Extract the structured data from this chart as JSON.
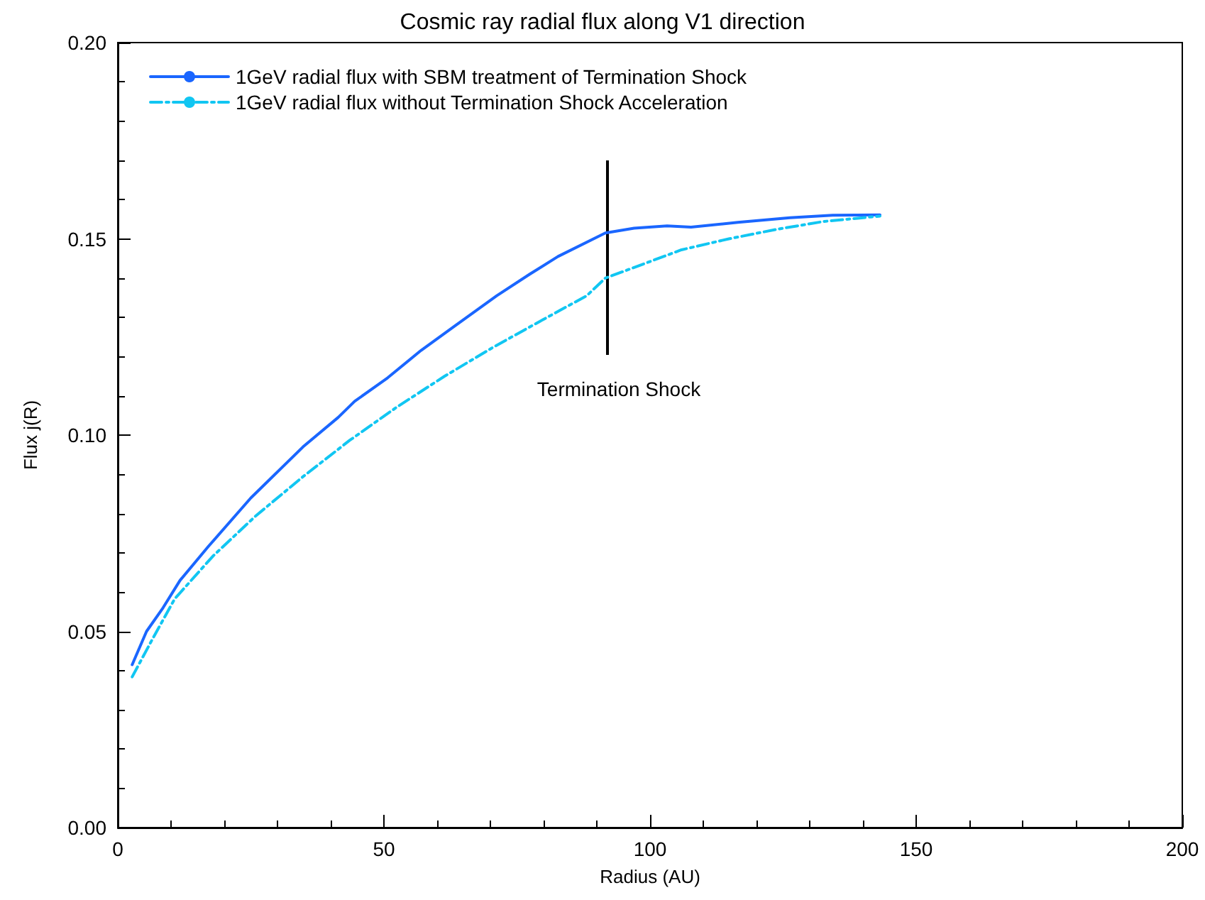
{
  "chart_data": {
    "type": "line",
    "title": "Cosmic ray radial flux along V1 direction",
    "xlabel": "Radius (AU)",
    "ylabel": "Flux j(R)",
    "xlim": [
      0,
      200
    ],
    "xticks": [
      0,
      50,
      100,
      150,
      200
    ],
    "ylim": [
      0,
      0.2
    ],
    "yticks": [
      {
        "value": 0,
        "label": "0.00"
      },
      {
        "value": 0.05,
        "label": "0.05"
      },
      {
        "value": 0.1,
        "label": "0.10"
      },
      {
        "value": 0.15,
        "label": "0.15"
      },
      {
        "value": 0.2,
        "label": "0.20"
      }
    ],
    "grid": false,
    "legend": "top left",
    "marker": "none",
    "series": [
      {
        "name": "1GeV radial flux with SBM treatment of Termination Shock",
        "color": "#1a66ff",
        "line_style": "solid",
        "x": [
          2.7,
          5.4,
          8.5,
          11.7,
          17,
          25,
          34.8,
          41.4,
          44.5,
          50.7,
          57,
          63.2,
          71.2,
          77.4,
          82.7,
          91.6,
          97,
          103.2,
          107.7,
          116.5,
          126.3,
          134.3,
          143.2
        ],
        "values": [
          0.0415,
          0.05,
          0.056,
          0.063,
          0.0716,
          0.084,
          0.097,
          0.1045,
          0.1086,
          0.1146,
          0.1216,
          0.1277,
          0.1355,
          0.141,
          0.1455,
          0.1515,
          0.1527,
          0.1533,
          0.153,
          0.1542,
          0.1554,
          0.156,
          0.1561
        ]
      },
      {
        "name": "1GeV radial flux without Termination Shock Acceleration",
        "color": "#11c6f2",
        "line_style": "dashdot",
        "x": [
          2.7,
          6.3,
          10.7,
          17.9,
          25.9,
          34.7,
          43.6,
          52.5,
          61.4,
          70.3,
          79.2,
          88.1,
          91.6,
          97,
          105.9,
          114.8,
          123.7,
          132.5,
          143.2
        ],
        "values": [
          0.0384,
          0.0475,
          0.0583,
          0.0692,
          0.0794,
          0.0893,
          0.0987,
          0.1072,
          0.115,
          0.1222,
          0.1289,
          0.1355,
          0.14,
          0.1427,
          0.1472,
          0.15,
          0.1524,
          0.1544,
          0.1558
        ]
      }
    ],
    "ref_lines": [
      {
        "axis": "x",
        "value": 92,
        "label": "Termination Shock",
        "color": "#000000"
      }
    ]
  }
}
